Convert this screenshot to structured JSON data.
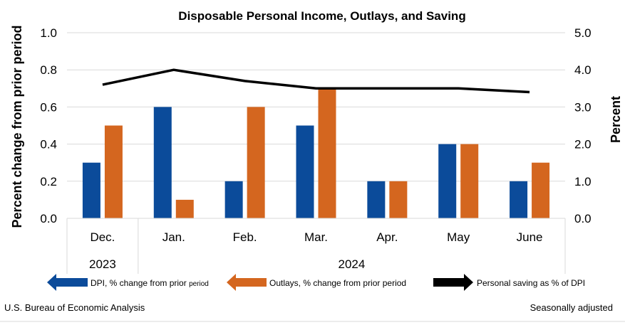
{
  "chart_data": {
    "type": "bar",
    "title": "Disposable Personal Income, Outlays, and Saving",
    "ylabel_left": "Percent change from prior period",
    "ylabel_right": "Percent",
    "ylim_left": [
      0,
      1.0
    ],
    "ylim_right": [
      0,
      5.0
    ],
    "left_ticks": [
      "0.0",
      "0.2",
      "0.4",
      "0.6",
      "0.8",
      "1.0"
    ],
    "right_ticks": [
      "0.0",
      "1.0",
      "2.0",
      "3.0",
      "4.0",
      "5.0"
    ],
    "grid": true,
    "categories": [
      "Dec.",
      "Jan.",
      "Feb.",
      "Mar.",
      "Apr.",
      "May",
      "June"
    ],
    "year_labels": [
      "2023",
      "2024"
    ],
    "series": [
      {
        "name": "DPI, % change from prior period",
        "type": "bar",
        "axis": "left",
        "color": "#0b4b9a",
        "values": [
          0.3,
          0.6,
          0.2,
          0.5,
          0.2,
          0.4,
          0.2
        ]
      },
      {
        "name": "Outlays, % change from prior period",
        "type": "bar",
        "axis": "left",
        "color": "#d4661f",
        "values": [
          0.5,
          0.1,
          0.6,
          0.7,
          0.2,
          0.4,
          0.3
        ]
      },
      {
        "name": "Personal saving as % of DPI",
        "type": "line",
        "axis": "right",
        "color": "#000000",
        "values": [
          3.6,
          4.0,
          3.7,
          3.5,
          3.5,
          3.5,
          3.4
        ]
      }
    ],
    "legend_position": "bottom"
  },
  "legend": {
    "dpi_main": "DPI, % change from prior ",
    "dpi_small": "period",
    "outlays": "Outlays, % change from prior period",
    "saving": "Personal saving as % of DPI"
  },
  "footer": {
    "source": "U.S. Bureau of Economic Analysis",
    "note": "Seasonally adjusted"
  }
}
